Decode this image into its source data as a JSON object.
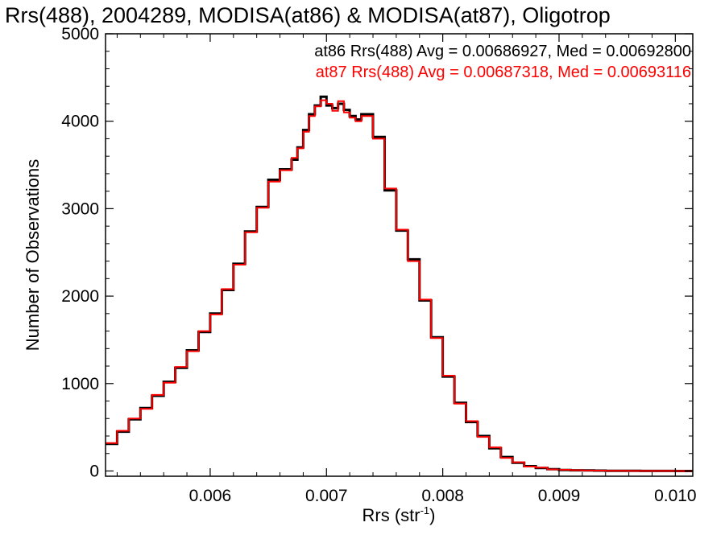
{
  "chart_data": {
    "type": "line",
    "title": "Rrs(488), 2004289, MODISA(at86) & MODISA(at87), Oligotrop",
    "xlabel_main": "Rrs (str",
    "xlabel_sup": "-1",
    "xlabel_close": ")",
    "ylabel": "Number of Observations",
    "xlim": [
      0.0051,
      0.01015
    ],
    "ylim": [
      -60,
      5000
    ],
    "x_ticks": [
      0.006,
      0.007,
      0.008,
      0.009,
      0.01
    ],
    "x_tick_labels": [
      "0.006",
      "0.007",
      "0.008",
      "0.009",
      "0.010"
    ],
    "y_ticks": [
      0,
      1000,
      2000,
      3000,
      4000,
      5000
    ],
    "y_tick_labels": [
      "0",
      "1000",
      "2000",
      "3000",
      "4000",
      "5000"
    ],
    "grid": false,
    "legend_placement": "top-right",
    "legend": [
      {
        "text": "at86 Rrs(488) Avg = 0.00686927, Med = 0.00692800",
        "color": "#000000"
      },
      {
        "text": "at87 Rrs(488) Avg = 0.00687318, Med = 0.00693116",
        "color": "#ff0000"
      }
    ],
    "series": [
      {
        "name": "at86",
        "color": "#000000",
        "x": [
          0.0051,
          0.0052,
          0.0053,
          0.0054,
          0.0055,
          0.0056,
          0.0057,
          0.0058,
          0.0059,
          0.006,
          0.0061,
          0.0062,
          0.0063,
          0.0064,
          0.0065,
          0.0066,
          0.0067,
          0.00675,
          0.0068,
          0.00685,
          0.0069,
          0.00695,
          0.007,
          0.00705,
          0.0071,
          0.00715,
          0.0072,
          0.00725,
          0.0073,
          0.0074,
          0.0075,
          0.0076,
          0.0077,
          0.0078,
          0.0079,
          0.008,
          0.0081,
          0.0082,
          0.0083,
          0.0084,
          0.0085,
          0.0086,
          0.0087,
          0.0088,
          0.0089,
          0.009,
          0.0091,
          0.0092,
          0.0093,
          0.0094,
          0.0095,
          0.0096,
          0.0097,
          0.0098,
          0.0099,
          0.01,
          0.01015
        ],
        "y": [
          310,
          450,
          590,
          720,
          860,
          1020,
          1180,
          1380,
          1590,
          1800,
          2070,
          2370,
          2740,
          3020,
          3330,
          3450,
          3560,
          3700,
          3900,
          4080,
          4180,
          4280,
          4180,
          4150,
          4200,
          4130,
          4060,
          4020,
          4080,
          3820,
          3210,
          2750,
          2420,
          1950,
          1530,
          1080,
          780,
          560,
          400,
          260,
          160,
          95,
          55,
          35,
          20,
          12,
          8,
          6,
          4,
          3,
          2,
          2,
          1,
          1,
          1,
          0,
          0
        ]
      },
      {
        "name": "at87",
        "color": "#ff0000",
        "x": [
          0.0051,
          0.0052,
          0.0053,
          0.0054,
          0.0055,
          0.0056,
          0.0057,
          0.0058,
          0.0059,
          0.006,
          0.0061,
          0.0062,
          0.0063,
          0.0064,
          0.0065,
          0.0066,
          0.0067,
          0.00675,
          0.0068,
          0.00685,
          0.0069,
          0.00695,
          0.007,
          0.00705,
          0.0071,
          0.00715,
          0.0072,
          0.00725,
          0.0073,
          0.0074,
          0.0075,
          0.0076,
          0.0077,
          0.0078,
          0.0079,
          0.008,
          0.0081,
          0.0082,
          0.0083,
          0.0084,
          0.0085,
          0.0086,
          0.0087,
          0.0088,
          0.0089,
          0.009,
          0.0091,
          0.0092,
          0.0093,
          0.0094,
          0.0095,
          0.0096,
          0.0097,
          0.0098,
          0.0099,
          0.01,
          0.01015
        ],
        "y": [
          320,
          460,
          600,
          710,
          870,
          1010,
          1190,
          1370,
          1600,
          1790,
          2080,
          2360,
          2730,
          3010,
          3310,
          3440,
          3580,
          3690,
          3880,
          4060,
          4170,
          4240,
          4200,
          4120,
          4230,
          4100,
          4040,
          4000,
          4060,
          3800,
          3230,
          2760,
          2400,
          1960,
          1520,
          1090,
          770,
          570,
          390,
          270,
          150,
          100,
          50,
          38,
          18,
          14,
          9,
          5,
          4,
          3,
          2,
          1,
          1,
          1,
          1,
          0,
          0
        ]
      }
    ]
  }
}
